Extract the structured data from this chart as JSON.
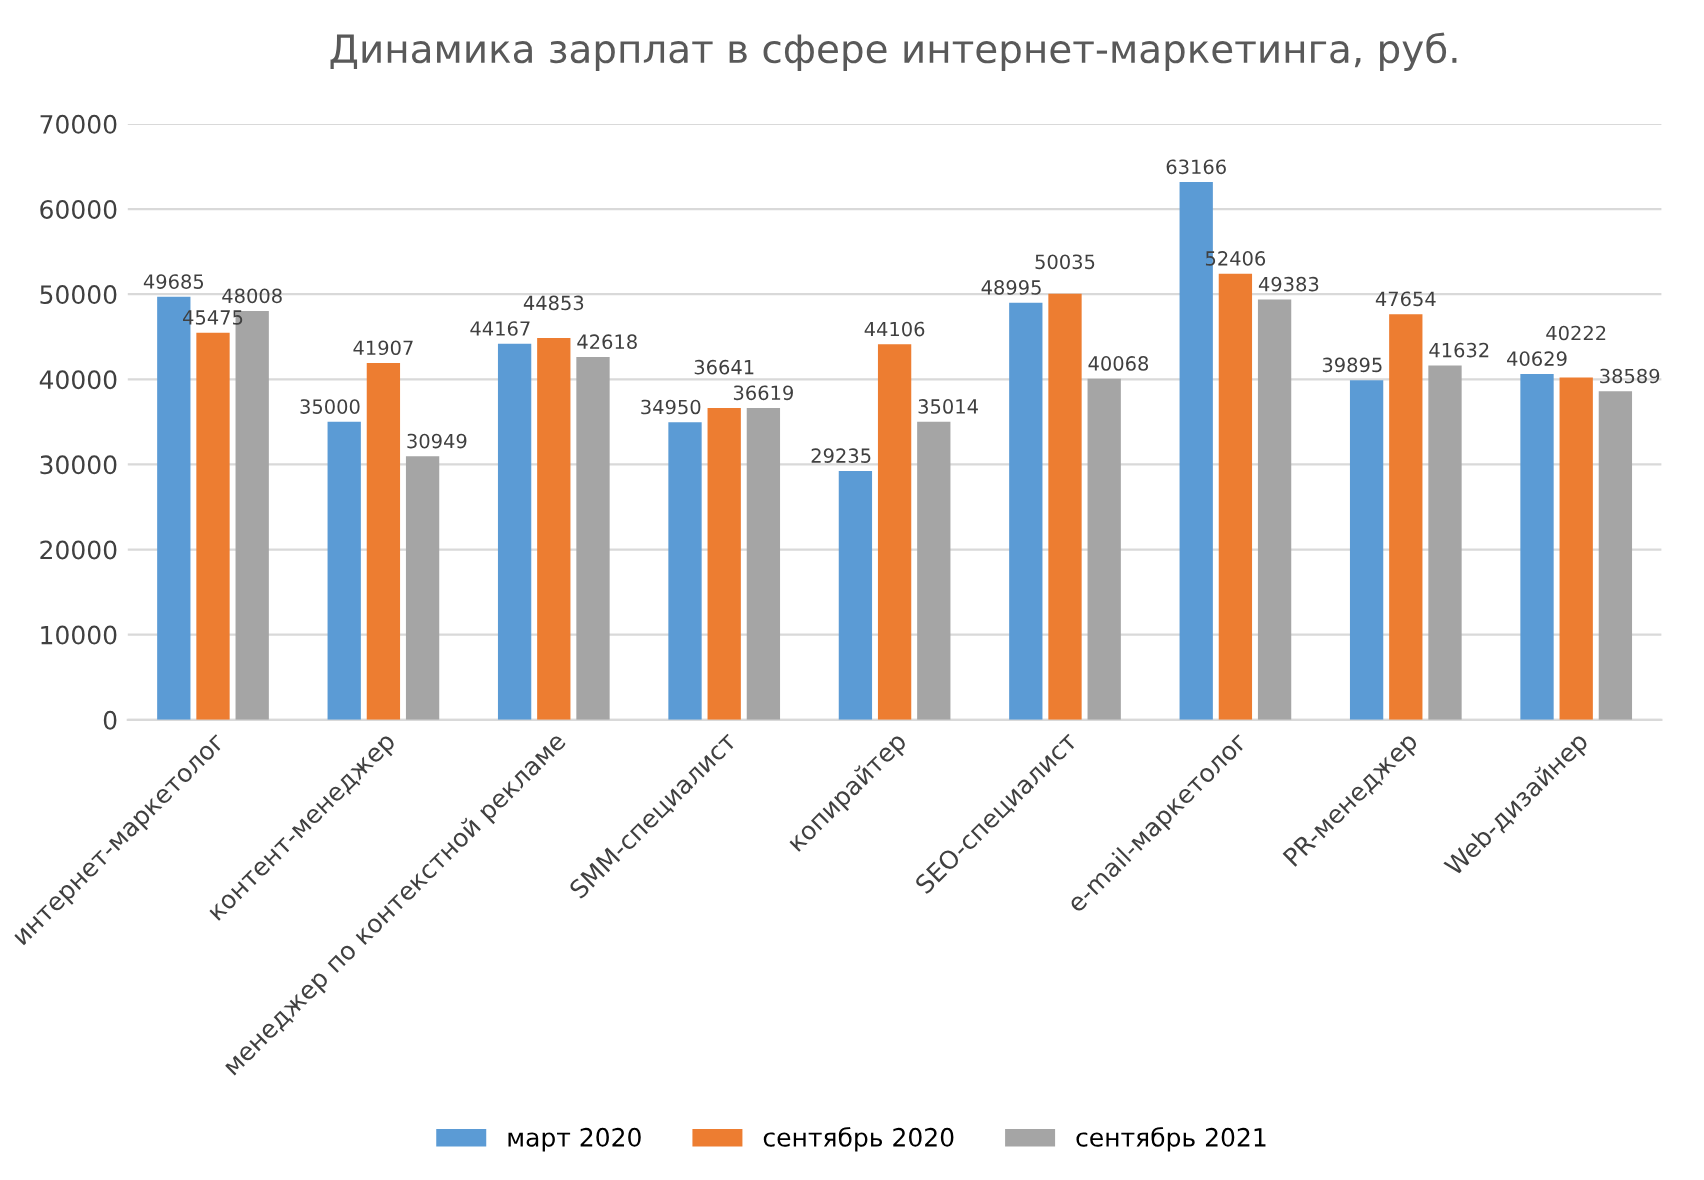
{
  "chart_data": {
    "type": "bar",
    "title": "Динамика зарплат в сфере интернет-маркетинга, руб.",
    "categories": [
      "интернет-маркетолог",
      "контент-менеджер",
      "менеджер по контекстной рекламе",
      "SMM-специалист",
      "копирайтер",
      "SEO-специалист",
      "e-mail-маркетолог",
      "PR-менеджер",
      "Web-дизайнер"
    ],
    "series": [
      {
        "name": "март 2020",
        "color": "#5b9bd5",
        "values": [
          49685,
          35000,
          44167,
          34950,
          29235,
          48995,
          63166,
          39895,
          40629
        ]
      },
      {
        "name": "сентябрь 2020",
        "color": "#ed7d31",
        "values": [
          45475,
          41907,
          44853,
          36641,
          44106,
          50035,
          52406,
          47654,
          40222
        ]
      },
      {
        "name": "сентябрь 2021",
        "color": "#a5a5a5",
        "values": [
          48008,
          30949,
          42618,
          36619,
          35014,
          40068,
          49383,
          41632,
          38589
        ]
      }
    ],
    "ylim": [
      0,
      70000
    ],
    "yticks": [
      0,
      10000,
      20000,
      30000,
      40000,
      50000,
      60000,
      70000
    ],
    "grid": "y",
    "legend": "bottom",
    "data_labels": true
  }
}
